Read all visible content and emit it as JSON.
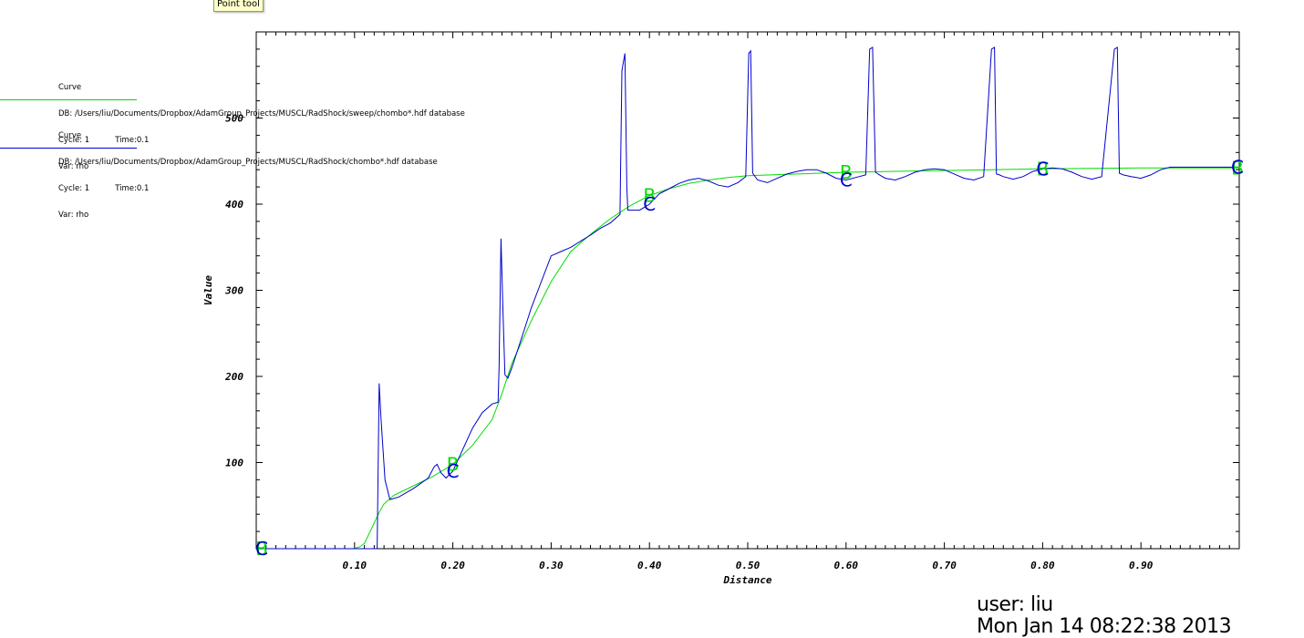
{
  "tooltip": "Point tool",
  "legend": [
    {
      "title": "Curve",
      "db": "DB: /Users/liu/Documents/Dropbox/AdamGroup_Projects/MUSCL/RadShock/sweep/chombo*.hdf database",
      "cycle": "Cycle: 1",
      "time": "Time:0.1",
      "var": "Var: rho",
      "color": "#00dd00"
    },
    {
      "title": "Curve",
      "db": "DB: /Users/liu/Documents/Dropbox/AdamGroup_Projects/MUSCL/RadShock/chombo*.hdf database",
      "cycle": "Cycle: 1",
      "time": "Time:0.1",
      "var": "Var: rho",
      "color": "#0000cc"
    }
  ],
  "user": {
    "label": "user: liu",
    "timestamp": "Mon Jan 14 08:22:38 2013"
  },
  "chart_data": {
    "type": "line",
    "xlabel": "Distance",
    "ylabel": "Value",
    "xlim": [
      0.0,
      1.0
    ],
    "ylim": [
      0,
      600
    ],
    "xticks": [
      "0.10",
      "0.20",
      "0.30",
      "0.40",
      "0.50",
      "0.60",
      "0.70",
      "0.80",
      "0.90"
    ],
    "yticks": [
      "100",
      "200",
      "300",
      "400",
      "500"
    ],
    "grid": false,
    "series": [
      {
        "color": "#00dd00",
        "x": [
          0.0,
          0.05,
          0.098,
          0.105,
          0.11,
          0.118,
          0.125,
          0.13,
          0.14,
          0.16,
          0.18,
          0.2,
          0.22,
          0.24,
          0.25,
          0.26,
          0.28,
          0.3,
          0.32,
          0.34,
          0.36,
          0.38,
          0.4,
          0.42,
          0.44,
          0.46,
          0.48,
          0.5,
          0.55,
          0.6,
          0.7,
          0.8,
          0.9,
          0.95,
          1.0
        ],
        "y": [
          0,
          0,
          0,
          2,
          6,
          25,
          42,
          52,
          62,
          73,
          84,
          98,
          120,
          150,
          180,
          215,
          265,
          310,
          345,
          365,
          383,
          398,
          410,
          418,
          424,
          428,
          431,
          433,
          435,
          437,
          439,
          441,
          442,
          442,
          442
        ]
      },
      {
        "color": "#0000cc",
        "x": [
          0.0,
          0.05,
          0.1,
          0.122,
          0.123,
          0.125,
          0.127,
          0.131,
          0.136,
          0.145,
          0.16,
          0.175,
          0.181,
          0.184,
          0.188,
          0.193,
          0.2,
          0.21,
          0.22,
          0.23,
          0.24,
          0.246,
          0.247,
          0.249,
          0.251,
          0.253,
          0.256,
          0.26,
          0.27,
          0.28,
          0.29,
          0.3,
          0.31,
          0.32,
          0.33,
          0.34,
          0.35,
          0.36,
          0.37,
          0.372,
          0.375,
          0.377,
          0.378,
          0.381,
          0.39,
          0.4,
          0.41,
          0.42,
          0.43,
          0.44,
          0.45,
          0.46,
          0.47,
          0.48,
          0.49,
          0.498,
          0.501,
          0.503,
          0.505,
          0.51,
          0.52,
          0.53,
          0.54,
          0.55,
          0.56,
          0.57,
          0.58,
          0.59,
          0.6,
          0.61,
          0.62,
          0.624,
          0.627,
          0.63,
          0.634,
          0.64,
          0.65,
          0.66,
          0.67,
          0.68,
          0.69,
          0.7,
          0.71,
          0.72,
          0.73,
          0.74,
          0.748,
          0.751,
          0.753,
          0.756,
          0.76,
          0.77,
          0.78,
          0.79,
          0.8,
          0.81,
          0.82,
          0.83,
          0.84,
          0.85,
          0.86,
          0.873,
          0.876,
          0.878,
          0.882,
          0.89,
          0.9,
          0.91,
          0.92,
          0.93,
          0.94,
          0.95,
          0.97,
          1.0
        ],
        "y": [
          0,
          0,
          0,
          0,
          0,
          192,
          150,
          80,
          57,
          60,
          70,
          82,
          95,
          98,
          88,
          82,
          90,
          115,
          140,
          158,
          168,
          170,
          210,
          360,
          275,
          202,
          198,
          210,
          245,
          280,
          310,
          340,
          345,
          350,
          357,
          364,
          372,
          378,
          388,
          555,
          575,
          420,
          393,
          393,
          393,
          400,
          412,
          418,
          424,
          428,
          430,
          427,
          422,
          420,
          425,
          432,
          575,
          578,
          436,
          428,
          425,
          430,
          435,
          438,
          440,
          440,
          436,
          430,
          428,
          431,
          434,
          580,
          582,
          437,
          434,
          430,
          428,
          432,
          437,
          440,
          441,
          440,
          435,
          430,
          428,
          432,
          580,
          582,
          435,
          434,
          432,
          429,
          432,
          438,
          441,
          442,
          441,
          437,
          432,
          429,
          432,
          580,
          582,
          436,
          434,
          432,
          430,
          434,
          440,
          443,
          443,
          443,
          443,
          443
        ]
      }
    ],
    "markers": [
      {
        "label": "B",
        "x": 0.0,
        "y": 0,
        "color": "#00dd00"
      },
      {
        "label": "C",
        "x": 0.0,
        "y": 0,
        "color": "#0000cc"
      },
      {
        "label": "B",
        "x": 0.2,
        "y": 98,
        "color": "#00dd00"
      },
      {
        "label": "C",
        "x": 0.2,
        "y": 90,
        "color": "#0000cc"
      },
      {
        "label": "B",
        "x": 0.4,
        "y": 410,
        "color": "#00dd00"
      },
      {
        "label": "C",
        "x": 0.4,
        "y": 400,
        "color": "#0000cc"
      },
      {
        "label": "B",
        "x": 0.6,
        "y": 437,
        "color": "#00dd00"
      },
      {
        "label": "C",
        "x": 0.6,
        "y": 428,
        "color": "#0000cc"
      },
      {
        "label": "B",
        "x": 0.8,
        "y": 441,
        "color": "#00dd00"
      },
      {
        "label": "C",
        "x": 0.8,
        "y": 441,
        "color": "#0000cc"
      },
      {
        "label": "B",
        "x": 1.0,
        "y": 442,
        "color": "#00dd00"
      },
      {
        "label": "C",
        "x": 1.0,
        "y": 443,
        "color": "#0000cc"
      }
    ]
  }
}
